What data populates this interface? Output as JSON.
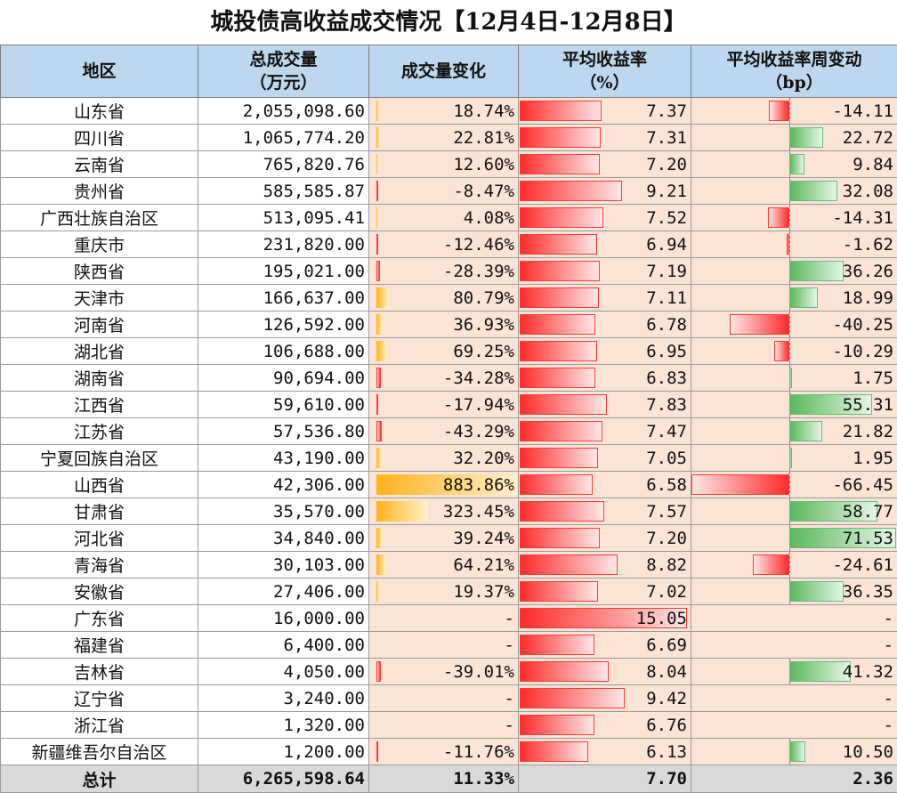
{
  "title": "城投债高收益成交情况【12月4日-12月8日】",
  "headers": {
    "region": "地区",
    "amount": "总成交量\n（万元）",
    "change": "成交量变化",
    "yield": "平均收益率\n（%）",
    "yield_change": "平均收益率周变动\n（bp）"
  },
  "colors": {
    "header_bg": "#bdd7ee",
    "cell_bg": "#fbe3d6",
    "bar_orange": "#ffb21a",
    "bar_red": "#ff2b2b",
    "bar_green": "#5cb85c",
    "total_bg": "#d9d9d9"
  },
  "rows": [
    {
      "region": "山东省",
      "amount": "2,055,098.60",
      "change": "18.74%",
      "change_v": 18.74,
      "yield": "7.37",
      "yield_v": 7.37,
      "ychg": "-14.11",
      "ychg_v": -14.11
    },
    {
      "region": "四川省",
      "amount": "1,065,774.20",
      "change": "22.81%",
      "change_v": 22.81,
      "yield": "7.31",
      "yield_v": 7.31,
      "ychg": "22.72",
      "ychg_v": 22.72
    },
    {
      "region": "云南省",
      "amount": "765,820.76",
      "change": "12.60%",
      "change_v": 12.6,
      "yield": "7.20",
      "yield_v": 7.2,
      "ychg": "9.84",
      "ychg_v": 9.84
    },
    {
      "region": "贵州省",
      "amount": "585,585.87",
      "change": "-8.47%",
      "change_v": -8.47,
      "yield": "9.21",
      "yield_v": 9.21,
      "ychg": "32.08",
      "ychg_v": 32.08
    },
    {
      "region": "广西壮族自治区",
      "amount": "513,095.41",
      "change": "4.08%",
      "change_v": 4.08,
      "yield": "7.52",
      "yield_v": 7.52,
      "ychg": "-14.31",
      "ychg_v": -14.31
    },
    {
      "region": "重庆市",
      "amount": "231,820.00",
      "change": "-12.46%",
      "change_v": -12.46,
      "yield": "6.94",
      "yield_v": 6.94,
      "ychg": "-1.62",
      "ychg_v": -1.62
    },
    {
      "region": "陕西省",
      "amount": "195,021.00",
      "change": "-28.39%",
      "change_v": -28.39,
      "yield": "7.19",
      "yield_v": 7.19,
      "ychg": "36.26",
      "ychg_v": 36.26
    },
    {
      "region": "天津市",
      "amount": "166,637.00",
      "change": "80.79%",
      "change_v": 80.79,
      "yield": "7.11",
      "yield_v": 7.11,
      "ychg": "18.99",
      "ychg_v": 18.99
    },
    {
      "region": "河南省",
      "amount": "126,592.00",
      "change": "36.93%",
      "change_v": 36.93,
      "yield": "6.78",
      "yield_v": 6.78,
      "ychg": "-40.25",
      "ychg_v": -40.25
    },
    {
      "region": "湖北省",
      "amount": "106,688.00",
      "change": "69.25%",
      "change_v": 69.25,
      "yield": "6.95",
      "yield_v": 6.95,
      "ychg": "-10.29",
      "ychg_v": -10.29
    },
    {
      "region": "湖南省",
      "amount": "90,694.00",
      "change": "-34.28%",
      "change_v": -34.28,
      "yield": "6.83",
      "yield_v": 6.83,
      "ychg": "1.75",
      "ychg_v": 1.75
    },
    {
      "region": "江西省",
      "amount": "59,610.00",
      "change": "-17.94%",
      "change_v": -17.94,
      "yield": "7.83",
      "yield_v": 7.83,
      "ychg": "55.31",
      "ychg_v": 55.31
    },
    {
      "region": "江苏省",
      "amount": "57,536.80",
      "change": "-43.29%",
      "change_v": -43.29,
      "yield": "7.47",
      "yield_v": 7.47,
      "ychg": "21.82",
      "ychg_v": 21.82
    },
    {
      "region": "宁夏回族自治区",
      "amount": "43,190.00",
      "change": "32.20%",
      "change_v": 32.2,
      "yield": "7.05",
      "yield_v": 7.05,
      "ychg": "1.95",
      "ychg_v": 1.95
    },
    {
      "region": "山西省",
      "amount": "42,306.00",
      "change": "883.86%",
      "change_v": 883.86,
      "yield": "6.58",
      "yield_v": 6.58,
      "ychg": "-66.45",
      "ychg_v": -66.45
    },
    {
      "region": "甘肃省",
      "amount": "35,570.00",
      "change": "323.45%",
      "change_v": 323.45,
      "yield": "7.57",
      "yield_v": 7.57,
      "ychg": "58.77",
      "ychg_v": 58.77
    },
    {
      "region": "河北省",
      "amount": "34,840.00",
      "change": "39.24%",
      "change_v": 39.24,
      "yield": "7.20",
      "yield_v": 7.2,
      "ychg": "71.53",
      "ychg_v": 71.53
    },
    {
      "region": "青海省",
      "amount": "30,103.00",
      "change": "64.21%",
      "change_v": 64.21,
      "yield": "8.82",
      "yield_v": 8.82,
      "ychg": "-24.61",
      "ychg_v": -24.61
    },
    {
      "region": "安徽省",
      "amount": "27,406.00",
      "change": "19.37%",
      "change_v": 19.37,
      "yield": "7.02",
      "yield_v": 7.02,
      "ychg": "36.35",
      "ychg_v": 36.35
    },
    {
      "region": "广东省",
      "amount": "16,000.00",
      "change": "-",
      "change_v": null,
      "yield": "15.05",
      "yield_v": 15.05,
      "ychg": "-",
      "ychg_v": null
    },
    {
      "region": "福建省",
      "amount": "6,400.00",
      "change": "-",
      "change_v": null,
      "yield": "6.69",
      "yield_v": 6.69,
      "ychg": "-",
      "ychg_v": null
    },
    {
      "region": "吉林省",
      "amount": "4,050.00",
      "change": "-39.01%",
      "change_v": -39.01,
      "yield": "8.04",
      "yield_v": 8.04,
      "ychg": "41.32",
      "ychg_v": 41.32
    },
    {
      "region": "辽宁省",
      "amount": "3,240.00",
      "change": "-",
      "change_v": null,
      "yield": "9.42",
      "yield_v": 9.42,
      "ychg": "-",
      "ychg_v": null
    },
    {
      "region": "浙江省",
      "amount": "1,320.00",
      "change": "-",
      "change_v": null,
      "yield": "6.76",
      "yield_v": 6.76,
      "ychg": "-",
      "ychg_v": null
    },
    {
      "region": "新疆维吾尔自治区",
      "amount": "1,200.00",
      "change": "-11.76%",
      "change_v": -11.76,
      "yield": "6.13",
      "yield_v": 6.13,
      "ychg": "10.50",
      "ychg_v": 10.5
    }
  ],
  "total": {
    "region": "总计",
    "amount": "6,265,598.64",
    "change": "11.33%",
    "yield": "7.70",
    "ychg": "2.36"
  }
}
